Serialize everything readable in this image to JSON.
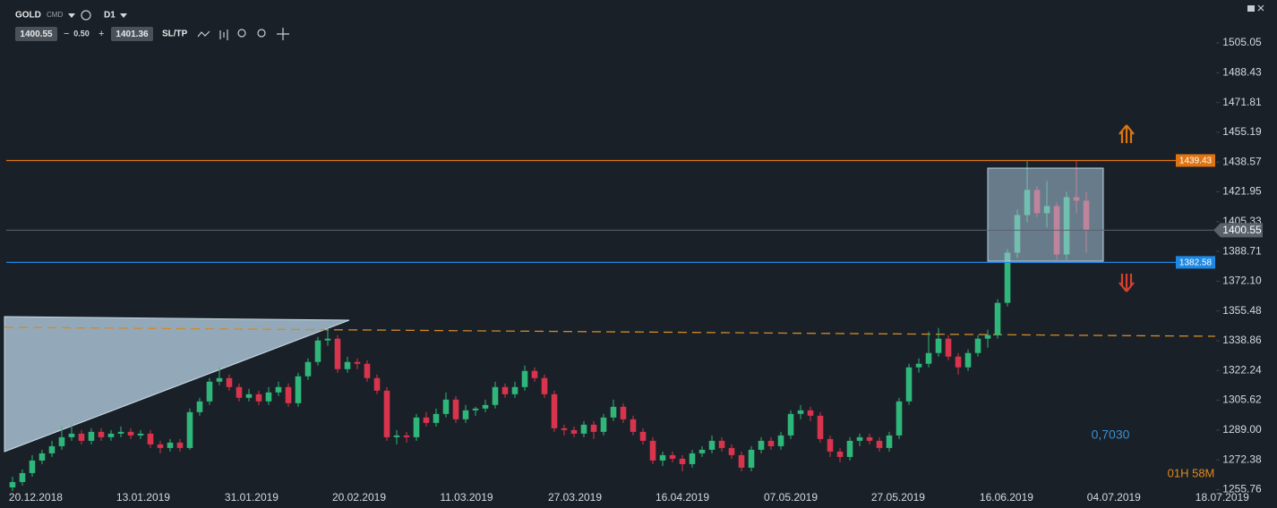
{
  "toolbar": {
    "symbol": "GOLD",
    "market": "CMD",
    "timeframe": "D1",
    "sell": "1400.55",
    "step": "0.50",
    "buy": "1401.36",
    "sltp": "SL/TP"
  },
  "chart_data": {
    "type": "candlestick",
    "up_color": "#2fb67a",
    "down_color": "#d8344e",
    "xlim": [
      -1.27,
      128.36
    ],
    "ylim": [
      1252,
      1529
    ],
    "grid": false,
    "xticks": [
      {
        "value": 2.36,
        "label": "20.12.2018"
      },
      {
        "value": 13.27,
        "label": "13.01.2019"
      },
      {
        "value": 24.27,
        "label": "31.01.2019"
      },
      {
        "value": 35.18,
        "label": "20.02.2019"
      },
      {
        "value": 46.09,
        "label": "11.03.2019"
      },
      {
        "value": 57.09,
        "label": "27.03.2019"
      },
      {
        "value": 68.0,
        "label": "16.04.2019"
      },
      {
        "value": 79.0,
        "label": "07.05.2019"
      },
      {
        "value": 89.9,
        "label": "27.05.2019"
      },
      {
        "value": 100.9,
        "label": "16.06.2019"
      },
      {
        "value": 111.8,
        "label": "04.07.2019"
      },
      {
        "value": 122.8,
        "label": "18.07.2019"
      }
    ],
    "yticks": [
      1505.05,
      1488.43,
      1471.81,
      1455.19,
      1438.57,
      1421.95,
      1405.33,
      1388.71,
      {
        "value": 1372.1,
        "label": "1372.10"
      },
      1355.48,
      1338.86,
      1322.24,
      1305.62,
      {
        "value": 1289,
        "label": "1289.00"
      },
      1272.38,
      1255.76
    ],
    "open": [
      1257,
      1260,
      1265,
      1272,
      1276,
      1280,
      1285,
      1287,
      1283,
      1288,
      1285,
      1287,
      1288,
      1286,
      1287,
      1281,
      1279,
      1282,
      1279,
      1299,
      1305,
      1316,
      1318,
      1313,
      1307,
      1309,
      1305,
      1310,
      1313,
      1304,
      1319,
      1327,
      1339,
      1340,
      1323,
      1327,
      1326,
      1318,
      1311,
      1285,
      1286,
      1285,
      1296,
      1293,
      1298,
      1306,
      1295,
      1300,
      1301,
      1303,
      1313,
      1309,
      1313,
      1322,
      1318,
      1309,
      1290,
      1289,
      1287,
      1292,
      1288,
      1296,
      1302,
      1295,
      1288,
      1283,
      1272,
      1275,
      1273,
      1270,
      1276,
      1278,
      1283,
      1279,
      1275,
      1268,
      1278,
      1283,
      1280,
      1286,
      1298,
      1300,
      1297,
      1284,
      1277,
      1274,
      1283,
      1285,
      1283,
      1279,
      1286,
      1305,
      1324,
      1326,
      1332,
      1340,
      1330,
      1324,
      1332,
      1340,
      1342,
      1360,
      1388,
      1409,
      1423,
      1410,
      1414,
      1387,
      1419,
      1417
    ],
    "high": [
      1263,
      1267,
      1275,
      1278,
      1283,
      1291,
      1292,
      1289,
      1290,
      1290,
      1289,
      1291,
      1290,
      1289,
      1289,
      1283,
      1284,
      1284,
      1301,
      1307,
      1318,
      1324,
      1320,
      1315,
      1312,
      1311,
      1313,
      1316,
      1315,
      1321,
      1329,
      1341,
      1346,
      1342,
      1330,
      1329,
      1328,
      1320,
      1313,
      1289,
      1288,
      1298,
      1299,
      1301,
      1310,
      1308,
      1303,
      1302,
      1306,
      1316,
      1315,
      1316,
      1325,
      1324,
      1320,
      1311,
      1292,
      1291,
      1294,
      1294,
      1298,
      1306,
      1304,
      1297,
      1290,
      1285,
      1277,
      1277,
      1275,
      1278,
      1280,
      1286,
      1285,
      1281,
      1277,
      1280,
      1285,
      1285,
      1288,
      1300,
      1303,
      1302,
      1299,
      1286,
      1279,
      1285,
      1287,
      1287,
      1285,
      1288,
      1307,
      1326,
      1329,
      1344,
      1346,
      1342,
      1332,
      1334,
      1342,
      1345,
      1362,
      1390,
      1412,
      1439,
      1425,
      1428,
      1416,
      1422,
      1439,
      1422
    ],
    "low": [
      1255,
      1258,
      1263,
      1270,
      1274,
      1278,
      1283,
      1281,
      1281,
      1283,
      1283,
      1285,
      1284,
      1284,
      1279,
      1276,
      1277,
      1277,
      1278,
      1297,
      1303,
      1314,
      1311,
      1305,
      1305,
      1303,
      1303,
      1308,
      1302,
      1302,
      1317,
      1325,
      1336,
      1321,
      1321,
      1323,
      1316,
      1309,
      1283,
      1281,
      1282,
      1283,
      1291,
      1291,
      1296,
      1293,
      1293,
      1297,
      1299,
      1301,
      1307,
      1307,
      1311,
      1316,
      1307,
      1288,
      1286,
      1285,
      1285,
      1284,
      1286,
      1294,
      1293,
      1286,
      1281,
      1270,
      1269,
      1271,
      1266,
      1268,
      1274,
      1276,
      1277,
      1273,
      1266,
      1266,
      1276,
      1278,
      1278,
      1284,
      1295,
      1294,
      1282,
      1274,
      1271,
      1272,
      1280,
      1281,
      1277,
      1277,
      1284,
      1303,
      1321,
      1324,
      1330,
      1328,
      1320,
      1322,
      1330,
      1335,
      1340,
      1358,
      1385,
      1405,
      1408,
      1402,
      1384,
      1384,
      1410,
      1388
    ],
    "close": [
      1260,
      1265,
      1272,
      1276,
      1280,
      1285,
      1287,
      1283,
      1288,
      1285,
      1287,
      1288,
      1286,
      1287,
      1281,
      1279,
      1282,
      1279,
      1299,
      1305,
      1316,
      1318,
      1313,
      1307,
      1309,
      1305,
      1310,
      1313,
      1304,
      1319,
      1327,
      1339,
      1340,
      1323,
      1327,
      1326,
      1318,
      1311,
      1285,
      1286,
      1285,
      1296,
      1293,
      1298,
      1306,
      1295,
      1300,
      1301,
      1303,
      1313,
      1309,
      1313,
      1322,
      1318,
      1309,
      1290,
      1289,
      1287,
      1292,
      1288,
      1296,
      1302,
      1295,
      1288,
      1283,
      1272,
      1275,
      1273,
      1270,
      1276,
      1278,
      1283,
      1279,
      1275,
      1268,
      1278,
      1283,
      1280,
      1286,
      1298,
      1300,
      1297,
      1284,
      1277,
      1274,
      1283,
      1285,
      1283,
      1279,
      1286,
      1305,
      1324,
      1326,
      1332,
      1340,
      1330,
      1324,
      1332,
      1340,
      1342,
      1360,
      1388,
      1409,
      1423,
      1410,
      1414,
      1387,
      1419,
      1417,
      1400.55
    ],
    "price_lines": [
      {
        "value": 1439.43,
        "color": "#e07412"
      },
      {
        "value": 1382.58,
        "color": "#1e88e5"
      }
    ],
    "current_price": 1400.55,
    "annotations": {
      "level": "0,7030",
      "countdown": "01H 58M"
    }
  }
}
